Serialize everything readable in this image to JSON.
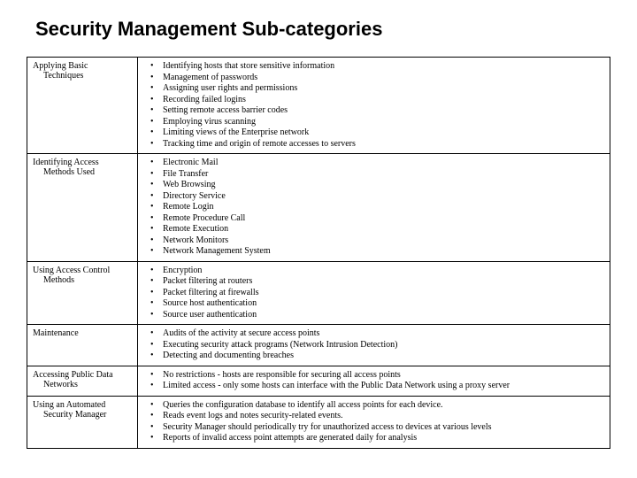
{
  "title": "Security Management Sub-categories",
  "rows": [
    {
      "label_line1": "Applying Basic",
      "label_line2": "Techniques",
      "items": [
        "Identifying hosts that store sensitive information",
        "Management of passwords",
        "Assigning user rights and permissions",
        "Recording failed logins",
        "Setting remote access barrier codes",
        "Employing virus scanning",
        "Limiting views of the Enterprise network",
        "Tracking time and origin of remote accesses to servers"
      ]
    },
    {
      "label_line1": "Identifying Access",
      "label_line2": "Methods Used",
      "items": [
        "Electronic Mail",
        "File Transfer",
        "Web Browsing",
        "Directory Service",
        "Remote Login",
        "Remote Procedure Call",
        "Remote Execution",
        "Network Monitors",
        "Network Management System"
      ]
    },
    {
      "label_line1": "Using Access Control",
      "label_line2": "Methods",
      "items": [
        "Encryption",
        "Packet filtering at routers",
        "Packet filtering at firewalls",
        "Source host authentication",
        "Source user authentication"
      ]
    },
    {
      "label_line1": "Maintenance",
      "label_line2": "",
      "items": [
        "Audits of the activity at secure access points",
        "Executing security attack programs (Network Intrusion Detection)",
        "Detecting and documenting  breaches"
      ]
    },
    {
      "label_line1": "Accessing Public Data",
      "label_line2": "Networks",
      "items": [
        "No restrictions - hosts are responsible for securing all access points",
        "Limited access - only some hosts can interface with the Public Data Network using a proxy server"
      ]
    },
    {
      "label_line1": "Using an Automated",
      "label_line2": "Security Manager",
      "items": [
        "Queries the configuration database to identify all access points for each device.",
        "Reads event logs and notes security-related events.",
        "Security Manager should periodically try for unauthorized access to devices at various levels",
        "Reports of invalid access point attempts are generated daily for analysis"
      ]
    }
  ]
}
